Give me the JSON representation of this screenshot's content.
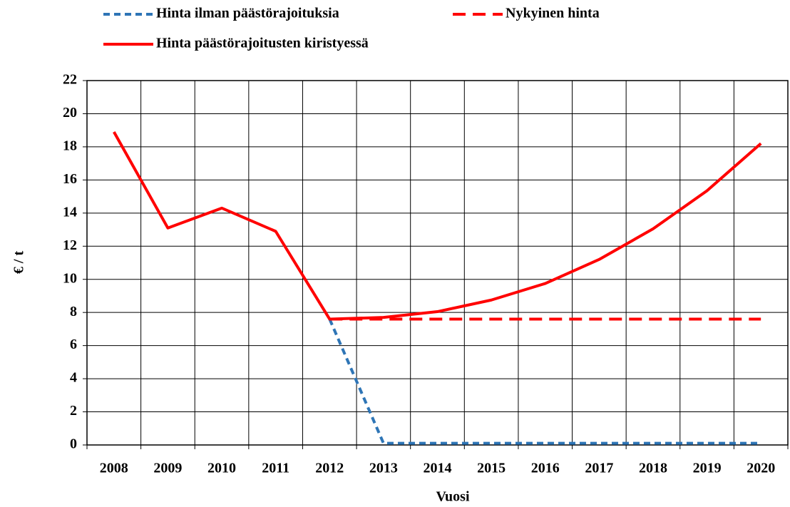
{
  "chart_data": {
    "type": "line",
    "x_label": "Vuosi",
    "y_label": "€ / t",
    "categories": [
      "2008",
      "2009",
      "2010",
      "2011",
      "2012",
      "2013",
      "2014",
      "2015",
      "2016",
      "2017",
      "2018",
      "2019",
      "2020"
    ],
    "series": [
      {
        "name": "Hinta ilman päästörajoituksia",
        "color": "#2e75b6",
        "style": "dotted",
        "values": [
          null,
          null,
          null,
          null,
          7.6,
          0.1,
          0.1,
          0.1,
          0.1,
          0.1,
          0.1,
          0.1,
          0.1
        ]
      },
      {
        "name": "Nykyinen hinta",
        "color": "#ff0000",
        "style": "dashed",
        "values": [
          null,
          null,
          null,
          null,
          7.6,
          7.6,
          7.6,
          7.6,
          7.6,
          7.6,
          7.6,
          7.6,
          7.6
        ]
      },
      {
        "name": "Hinta päästörajoitusten kiristyessä",
        "color": "#ff0000",
        "style": "solid",
        "values": [
          18.9,
          13.1,
          14.3,
          12.9,
          7.6,
          7.7,
          8.05,
          8.75,
          9.75,
          11.2,
          13.05,
          15.35,
          18.2
        ]
      }
    ],
    "ylim": [
      0,
      22
    ],
    "yticks": [
      0,
      2,
      4,
      6,
      8,
      10,
      12,
      14,
      16,
      18,
      20,
      22
    ],
    "grid": true
  }
}
